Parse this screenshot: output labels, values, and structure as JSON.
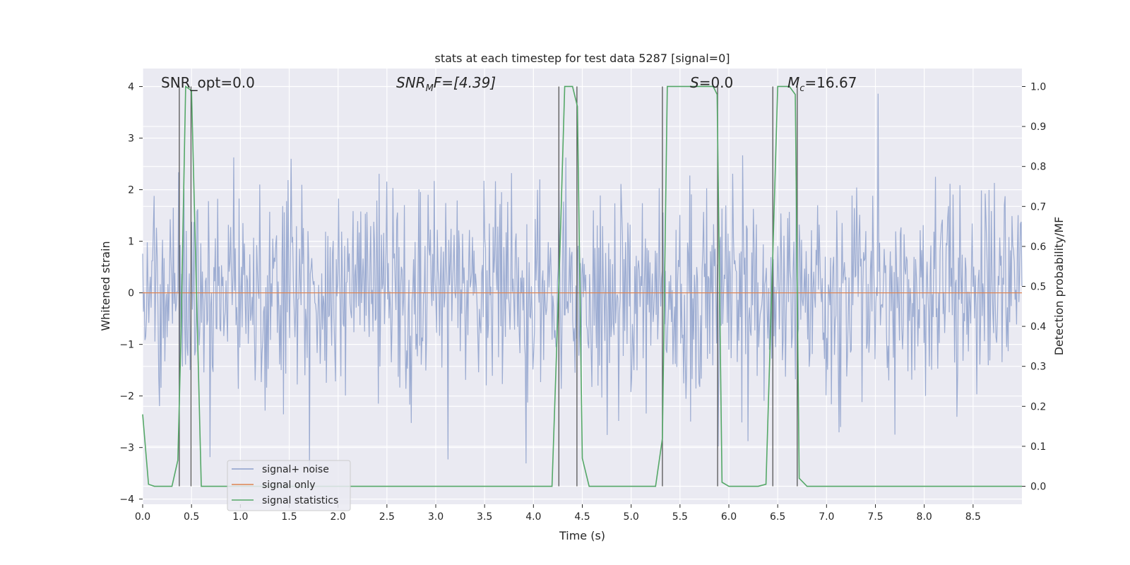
{
  "chart_data": {
    "type": "line",
    "title": "stats at each timestep for test data 5287 [signal=0]",
    "xlabel": "Time (s)",
    "ylabel_left": "Whitened strain",
    "ylabel_right": "Detection probability/MF",
    "xlim": [
      0.0,
      9.0
    ],
    "ylim_left": [
      -4.1,
      4.35
    ],
    "ylim_right": [
      -0.045,
      1.045
    ],
    "x_ticks": [
      0.0,
      0.5,
      1.0,
      1.5,
      2.0,
      2.5,
      3.0,
      3.5,
      4.0,
      4.5,
      5.0,
      5.5,
      6.0,
      6.5,
      7.0,
      7.5,
      8.0,
      8.5
    ],
    "x_tick_labels": [
      "0.0",
      "0.5",
      "1.0",
      "1.5",
      "2.0",
      "2.5",
      "3.0",
      "3.5",
      "4.0",
      "4.5",
      "5.0",
      "5.5",
      "6.0",
      "6.5",
      "7.0",
      "7.5",
      "8.0",
      "8.5"
    ],
    "y_left_ticks": [
      4,
      3,
      2,
      1,
      0,
      -1,
      -2,
      -3,
      -4
    ],
    "y_left_tick_labels": [
      "4",
      "3",
      "2",
      "1",
      "0",
      "−1",
      "−2",
      "−3",
      "−4"
    ],
    "y_right_ticks": [
      1.0,
      0.9,
      0.8,
      0.7,
      0.6,
      0.5,
      0.4,
      0.3,
      0.2,
      0.1,
      0.0
    ],
    "y_right_tick_labels": [
      "1.0",
      "0.9",
      "0.8",
      "0.7",
      "0.6",
      "0.5",
      "0.4",
      "0.3",
      "0.2",
      "0.1",
      "0.0"
    ],
    "annotations": {
      "snr_opt": "SNR_opt=0.0",
      "snr_mf_main": "SNR",
      "snr_mf_sub": "M",
      "snr_mf_rest": "F=[4.39]",
      "s_main": "S",
      "s_rest": "=0.0",
      "mc_main": "M",
      "mc_sub": "c",
      "mc_rest": "=16.67"
    },
    "series": [
      {
        "name": "signal+ noise",
        "color": "#8da0cb",
        "kind": "noise",
        "seed": 5287,
        "sigma": 1.0,
        "n_samples": 1150
      },
      {
        "name": "signal only",
        "color": "#dd8452",
        "x": [
          0.0,
          9.0
        ],
        "y": [
          0.0,
          0.0
        ]
      },
      {
        "name": "signal statistics",
        "color": "#55a868",
        "axis": "right",
        "x": [
          0.0,
          0.06,
          0.12,
          0.3,
          0.36,
          0.39,
          0.44,
          0.5,
          0.6,
          1.0,
          2.0,
          3.0,
          4.0,
          4.19,
          4.27,
          4.32,
          4.4,
          4.45,
          4.5,
          4.57,
          4.7,
          5.0,
          5.25,
          5.32,
          5.37,
          5.5,
          5.84,
          5.88,
          5.93,
          6.0,
          6.3,
          6.38,
          6.45,
          6.5,
          6.62,
          6.68,
          6.72,
          6.8,
          7.0,
          8.0,
          9.0
        ],
        "y": [
          0.18,
          0.005,
          0.0,
          0.0,
          0.065,
          0.35,
          1.0,
          0.99,
          0.0,
          0.0,
          0.0,
          0.0,
          0.0,
          0.0,
          0.58,
          1.0,
          1.0,
          0.95,
          0.07,
          0.0,
          0.0,
          0.0,
          0.0,
          0.12,
          1.0,
          1.0,
          1.0,
          0.98,
          0.01,
          0.0,
          0.0,
          0.005,
          0.58,
          1.0,
          1.0,
          0.98,
          0.02,
          0.0,
          0.0,
          0.0,
          0.0
        ]
      }
    ],
    "vertical_markers": [
      0.375,
      0.495,
      4.26,
      4.445,
      5.32,
      5.885,
      6.45,
      6.7
    ],
    "legend_placement": "lower-left",
    "grid": true
  }
}
